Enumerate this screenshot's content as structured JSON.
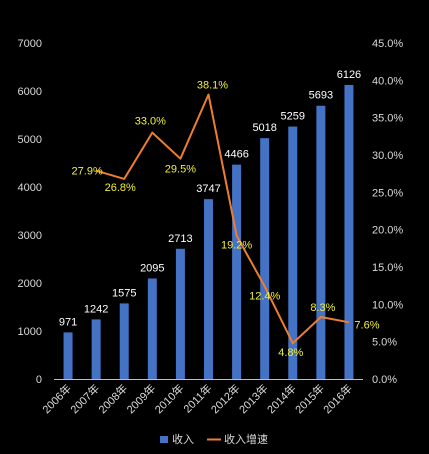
{
  "chart_data": {
    "type": "bar",
    "categories": [
      "2006年",
      "2007年",
      "2008年",
      "2009年",
      "2010年",
      "2011年",
      "2012年",
      "2013年",
      "2014年",
      "2015年",
      "2016年"
    ],
    "series": [
      {
        "name": "收入",
        "type": "bar",
        "axis": "left",
        "color": "#4472c4",
        "values": [
          971,
          1242,
          1575,
          2095,
          2713,
          3747,
          4466,
          5018,
          5259,
          5693,
          6126
        ],
        "labels": [
          "971",
          "1242",
          "1575",
          "2095",
          "2713",
          "3747",
          "4466",
          "5018",
          "5259",
          "5693",
          "6126"
        ]
      },
      {
        "name": "收入增速",
        "type": "line",
        "axis": "right",
        "color": "#ed7d31",
        "values": [
          null,
          27.9,
          26.8,
          33.0,
          29.5,
          38.1,
          19.2,
          12.4,
          4.8,
          8.3,
          7.6
        ],
        "labels": [
          null,
          "27.9%",
          "26.8%",
          "33.0%",
          "29.5%",
          "38.1%",
          "19.2%",
          "12.4%",
          "4.8%",
          "8.3%",
          "7.6%"
        ]
      }
    ],
    "ylim": [
      0,
      7000
    ],
    "y2lim": [
      0,
      45
    ],
    "yticks": [
      "0",
      "1000",
      "2000",
      "3000",
      "4000",
      "5000",
      "6000",
      "7000"
    ],
    "y2ticks": [
      "0.0%",
      "5.0%",
      "10.0%",
      "15.0%",
      "20.0%",
      "25.0%",
      "30.0%",
      "35.0%",
      "40.0%",
      "45.0%"
    ],
    "legend_position": "bottom",
    "grid": false,
    "title": "",
    "xlabel": "",
    "ylabel": ""
  }
}
